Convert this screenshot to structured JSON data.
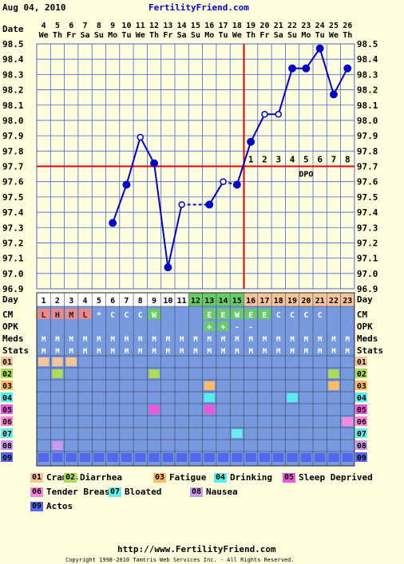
{
  "header": {
    "date": "Aug 04, 2010",
    "site": "FertilityFriend.com"
  },
  "colors": {
    "background": "#ffffe0",
    "plot_bg": "#ffffe0",
    "grid": "#4466cc",
    "line": "#0000cc",
    "coverline": "#dd0000",
    "ovulation_line": "#dd0000",
    "table_bg": "#7799dd",
    "fertile": "#66cc66",
    "luteal": "#f5c49a",
    "menses": "#ee8888",
    "cm_w": "#66cc66",
    "cm_e": "#66cc66"
  },
  "labels": {
    "date": "Date",
    "day": "Day",
    "cm": "CM",
    "opk": "OPK",
    "meds": "Meds",
    "stats": "Stats",
    "dpo": "DPO"
  },
  "chart_data": {
    "type": "line",
    "title": "",
    "ylim": [
      96.9,
      98.5
    ],
    "yticks": [
      "96.9",
      "97.0",
      "97.1",
      "97.2",
      "97.3",
      "97.4",
      "97.5",
      "97.6",
      "97.7",
      "97.8",
      "97.9",
      "98.0",
      "98.1",
      "98.2",
      "98.3",
      "98.4",
      "98.5"
    ],
    "dates": [
      "4",
      "5",
      "6",
      "7",
      "8",
      "9",
      "10",
      "11",
      "12",
      "13",
      "14",
      "15",
      "16",
      "17",
      "18",
      "19",
      "20",
      "21",
      "22",
      "23",
      "24",
      "25",
      "26"
    ],
    "weekdays": [
      "We",
      "Th",
      "Fr",
      "Sa",
      "Su",
      "Mo",
      "Tu",
      "We",
      "Th",
      "Fr",
      "Sa",
      "Su",
      "Mo",
      "Tu",
      "We",
      "Th",
      "Fr",
      "Sa",
      "Su",
      "Mo",
      "Tu",
      "We",
      "Th"
    ],
    "cycle_days": [
      "1",
      "2",
      "3",
      "4",
      "5",
      "6",
      "7",
      "8",
      "9",
      "10",
      "11",
      "12",
      "13",
      "14",
      "15",
      "16",
      "17",
      "18",
      "19",
      "20",
      "21",
      "22",
      "23"
    ],
    "temps": [
      null,
      null,
      null,
      null,
      null,
      97.33,
      97.58,
      97.89,
      97.72,
      97.04,
      97.45,
      null,
      97.45,
      97.6,
      97.58,
      97.86,
      98.04,
      98.04,
      98.34,
      98.34,
      98.47,
      98.17,
      98.34
    ],
    "open_points": [
      7,
      10,
      13,
      16,
      17
    ],
    "dashed_segments": [
      [
        10,
        12
      ],
      [
        13,
        14
      ]
    ],
    "coverline": 97.7,
    "ovulation_day_index": 14,
    "dpo": [
      "1",
      "2",
      "3",
      "4",
      "5",
      "6",
      "7",
      "8"
    ],
    "cm": [
      "L",
      "H",
      "M",
      "L",
      "*",
      "C",
      "C",
      "C",
      "W",
      "",
      "",
      "",
      "E",
      "E",
      "W",
      "E",
      "E",
      "C",
      "C",
      "C",
      "C",
      "",
      ""
    ],
    "opk": [
      "",
      "",
      "",
      "",
      "",
      "",
      "",
      "",
      "",
      "",
      "",
      "",
      "+",
      "+",
      "-",
      "-",
      "",
      "",
      "",
      "",
      "",
      "",
      ""
    ],
    "meds": [
      "M",
      "M",
      "M",
      "M",
      "M",
      "M",
      "M",
      "M",
      "M",
      "M",
      "M",
      "M",
      "M",
      "M",
      "M",
      "M",
      "M",
      "M",
      "M",
      "M",
      "M",
      "M",
      "M"
    ],
    "stats_rows": [
      "01",
      "02",
      "03",
      "04",
      "05",
      "06",
      "07",
      "08",
      "09"
    ],
    "stats_marks": {
      "01": [
        0,
        1,
        2
      ],
      "02": [
        1,
        8,
        21
      ],
      "03": [
        12,
        21
      ],
      "04": [
        12,
        18
      ],
      "05": [
        8,
        12
      ],
      "06": [
        22
      ],
      "07": [
        14
      ],
      "08": [
        1
      ],
      "09": [
        0,
        1,
        2,
        3,
        4,
        5,
        6,
        7,
        8,
        9,
        10,
        11,
        12,
        13,
        14,
        15,
        16,
        17,
        18,
        19,
        20,
        21,
        22
      ]
    }
  },
  "legend": [
    {
      "code": "01",
      "label": "Cramps",
      "color": "#f5c49a"
    },
    {
      "code": "02",
      "label": "Diarrhea",
      "color": "#aadd55"
    },
    {
      "code": "03",
      "label": "Fatigue",
      "color": "#ffbb66"
    },
    {
      "code": "04",
      "label": "Drinking",
      "color": "#55eeee"
    },
    {
      "code": "05",
      "label": "Sleep Deprived",
      "color": "#ee55dd"
    },
    {
      "code": "06",
      "label": "Tender Breasts",
      "color": "#ff88dd"
    },
    {
      "code": "07",
      "label": "Bloated",
      "color": "#66eeee"
    },
    {
      "code": "08",
      "label": "Nausea",
      "color": "#cc99ee"
    },
    {
      "code": "09",
      "label": "Actos",
      "color": "#5566ee"
    }
  ],
  "footer": {
    "url": "http://www.FertilityFriend.com",
    "copyright": "Copyright 1998-2010 Tamtris Web Services Inc. - All Rights Reserved."
  }
}
